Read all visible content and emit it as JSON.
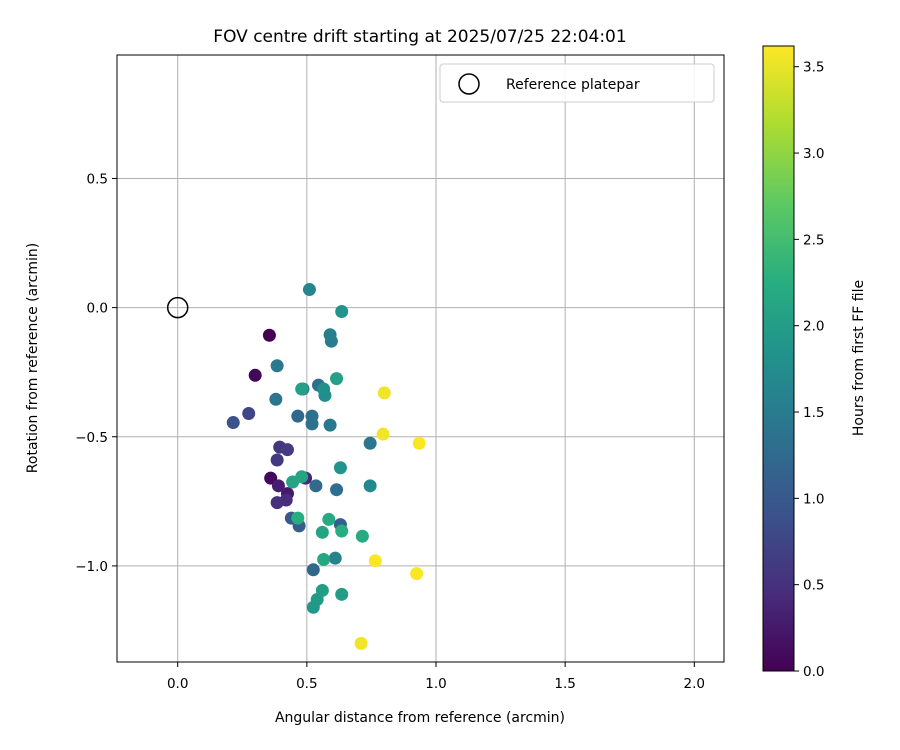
{
  "chart_data": {
    "type": "scatter",
    "title": "FOV centre drift starting at 2025/07/25 22:04:01",
    "xlabel": "Angular distance from reference (arcmin)",
    "ylabel": "Rotation from reference (arcmin)",
    "xlim": [
      -0.235,
      2.115
    ],
    "ylim": [
      -1.372,
      0.978
    ],
    "x_ticks": [
      0.0,
      0.5,
      1.0,
      1.5,
      2.0
    ],
    "x_tick_labels": [
      "0.0",
      "0.5",
      "1.0",
      "1.5",
      "2.0"
    ],
    "y_ticks": [
      0.5,
      0.0,
      -0.5,
      -1.0
    ],
    "y_tick_labels": [
      "0.5",
      "0.0",
      "−0.5",
      "−1.0"
    ],
    "grid": true,
    "legend": {
      "placement": "top-right",
      "entries": [
        {
          "label": "Reference platepar",
          "marker": "open-circle"
        }
      ]
    },
    "reference_point": {
      "x": 0.0,
      "y": 0.0
    },
    "colorbar": {
      "label": "Hours from first FF file",
      "colormap": "viridis",
      "range": [
        0.0,
        3.62
      ],
      "ticks": [
        0.0,
        0.5,
        1.0,
        1.5,
        2.0,
        2.5,
        3.0,
        3.5
      ],
      "tick_labels": [
        "0.0",
        "0.5",
        "1.0",
        "1.5",
        "2.0",
        "2.5",
        "3.0",
        "3.5"
      ]
    },
    "points": [
      {
        "x": 0.355,
        "y": -0.107,
        "c": 0.0
      },
      {
        "x": 0.3,
        "y": -0.262,
        "c": 0.05
      },
      {
        "x": 0.36,
        "y": -0.66,
        "c": 0.08
      },
      {
        "x": 0.425,
        "y": -0.72,
        "c": 0.25
      },
      {
        "x": 0.39,
        "y": -0.69,
        "c": 0.3
      },
      {
        "x": 0.495,
        "y": -0.66,
        "c": 0.4
      },
      {
        "x": 0.42,
        "y": -0.745,
        "c": 0.45
      },
      {
        "x": 0.385,
        "y": -0.755,
        "c": 0.5
      },
      {
        "x": 0.395,
        "y": -0.54,
        "c": 0.55
      },
      {
        "x": 0.385,
        "y": -0.59,
        "c": 0.6
      },
      {
        "x": 0.425,
        "y": -0.55,
        "c": 0.65
      },
      {
        "x": 0.275,
        "y": -0.41,
        "c": 0.75
      },
      {
        "x": 0.215,
        "y": -0.445,
        "c": 0.9
      },
      {
        "x": 0.44,
        "y": -0.815,
        "c": 1.0
      },
      {
        "x": 0.47,
        "y": -0.845,
        "c": 1.05
      },
      {
        "x": 0.63,
        "y": -0.84,
        "c": 1.1
      },
      {
        "x": 0.465,
        "y": -0.42,
        "c": 1.2
      },
      {
        "x": 0.525,
        "y": -1.015,
        "c": 1.2
      },
      {
        "x": 0.535,
        "y": -0.69,
        "c": 1.25
      },
      {
        "x": 0.615,
        "y": -0.705,
        "c": 1.3
      },
      {
        "x": 0.52,
        "y": -0.42,
        "c": 1.3
      },
      {
        "x": 0.52,
        "y": -0.45,
        "c": 1.35
      },
      {
        "x": 0.545,
        "y": -0.3,
        "c": 1.35
      },
      {
        "x": 0.38,
        "y": -0.355,
        "c": 1.4
      },
      {
        "x": 0.385,
        "y": -0.225,
        "c": 1.45
      },
      {
        "x": 0.59,
        "y": -0.455,
        "c": 1.45
      },
      {
        "x": 0.745,
        "y": -0.525,
        "c": 1.45
      },
      {
        "x": 0.595,
        "y": -0.13,
        "c": 1.5
      },
      {
        "x": 0.59,
        "y": -0.105,
        "c": 1.55
      },
      {
        "x": 0.485,
        "y": -0.315,
        "c": 1.5
      },
      {
        "x": 0.51,
        "y": 0.07,
        "c": 1.65
      },
      {
        "x": 0.61,
        "y": -0.97,
        "c": 1.6
      },
      {
        "x": 0.745,
        "y": -0.69,
        "c": 1.7
      },
      {
        "x": 0.57,
        "y": -0.34,
        "c": 1.75
      },
      {
        "x": 0.565,
        "y": -0.315,
        "c": 1.8
      },
      {
        "x": 0.635,
        "y": -0.015,
        "c": 1.85
      },
      {
        "x": 0.63,
        "y": -0.62,
        "c": 1.85
      },
      {
        "x": 0.525,
        "y": -1.16,
        "c": 1.9
      },
      {
        "x": 0.54,
        "y": -1.13,
        "c": 1.95
      },
      {
        "x": 0.56,
        "y": -1.095,
        "c": 2.0
      },
      {
        "x": 0.635,
        "y": -1.11,
        "c": 2.0
      },
      {
        "x": 0.48,
        "y": -0.315,
        "c": 2.05
      },
      {
        "x": 0.615,
        "y": -0.275,
        "c": 2.05
      },
      {
        "x": 0.445,
        "y": -0.675,
        "c": 2.1
      },
      {
        "x": 0.48,
        "y": -0.655,
        "c": 2.1
      },
      {
        "x": 0.56,
        "y": -0.87,
        "c": 2.1
      },
      {
        "x": 0.565,
        "y": -0.975,
        "c": 2.15
      },
      {
        "x": 0.585,
        "y": -0.82,
        "c": 2.2
      },
      {
        "x": 0.465,
        "y": -0.815,
        "c": 2.25
      },
      {
        "x": 0.635,
        "y": -0.865,
        "c": 2.25
      },
      {
        "x": 0.715,
        "y": -0.885,
        "c": 2.2
      },
      {
        "x": 0.71,
        "y": -1.3,
        "c": 3.55
      },
      {
        "x": 0.8,
        "y": -0.33,
        "c": 3.55
      },
      {
        "x": 0.795,
        "y": -0.49,
        "c": 3.55
      },
      {
        "x": 0.935,
        "y": -0.525,
        "c": 3.6
      },
      {
        "x": 0.765,
        "y": -0.98,
        "c": 3.6
      },
      {
        "x": 0.925,
        "y": -1.03,
        "c": 3.6
      }
    ]
  }
}
